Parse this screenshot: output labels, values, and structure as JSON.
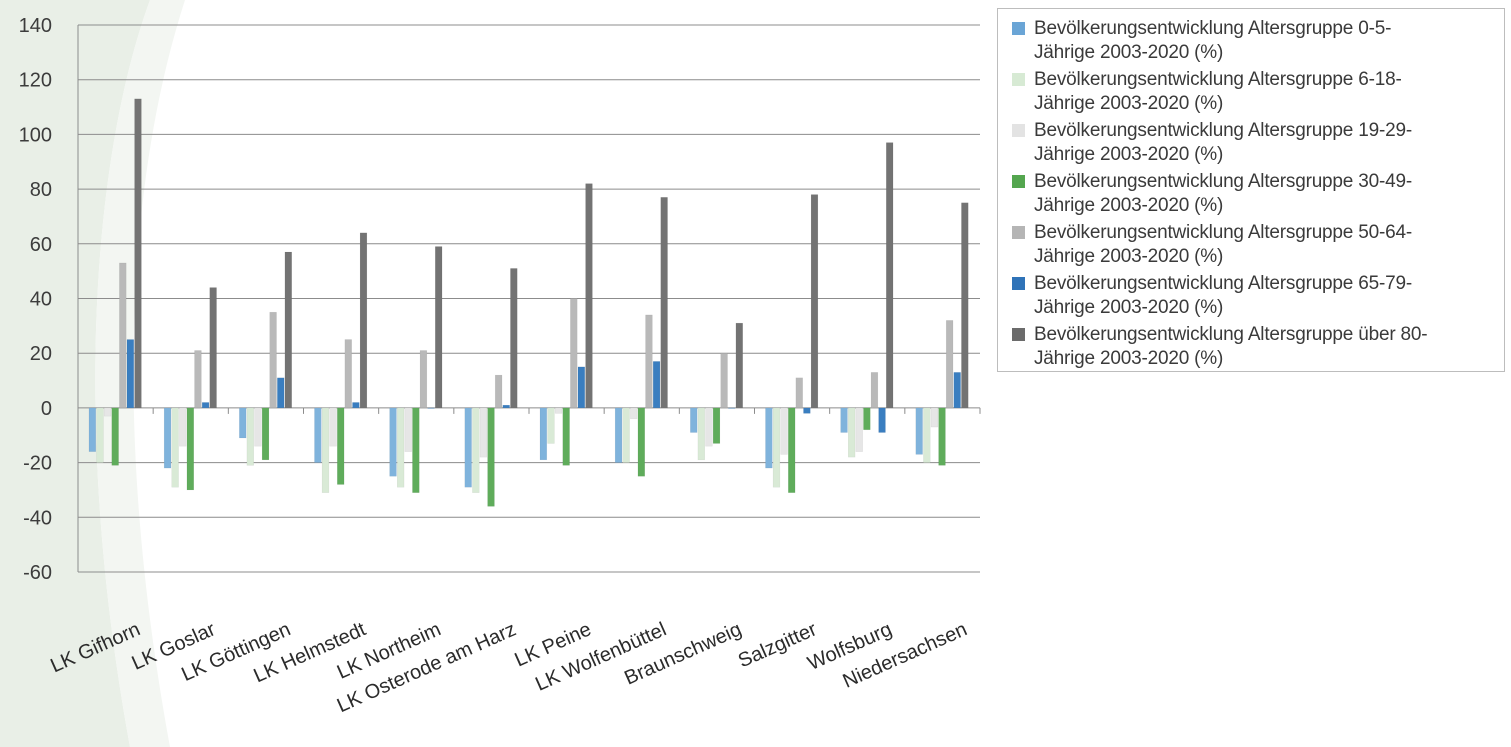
{
  "chart_data": {
    "type": "bar",
    "title": "",
    "xlabel": "",
    "ylabel": "",
    "ylim": [
      -60,
      140
    ],
    "yticks": [
      140,
      120,
      100,
      80,
      60,
      40,
      20,
      0,
      -20,
      -40,
      -60
    ],
    "grid": true,
    "legend_position": "right",
    "categories": [
      "LK Gifhorn",
      "LK Goslar",
      "LK Göttingen",
      "LK Helmstedt",
      "LK Northeim",
      "LK Osterode am Harz",
      "LK Peine",
      "LK Wolfenbüttel",
      "Braunschweig",
      "Salzgitter",
      "Wolfsburg",
      "Niedersachsen"
    ],
    "series": [
      {
        "name": "Bevölkerungsentwicklung Altersgruppe 0-5-Jährige 2003-2020 (%)",
        "color": "#7fb3dc",
        "values": [
          -16,
          -22,
          -11,
          -20,
          -25,
          -29,
          -19,
          -20,
          -9,
          -22,
          -9,
          -17
        ]
      },
      {
        "name": "Bevölkerungsentwicklung Altersgruppe 6-18-Jährige 2003-2020 (%)",
        "color": "#d9ead6",
        "values": [
          -20,
          -29,
          -21,
          -31,
          -29,
          -31,
          -13,
          -20,
          -19,
          -29,
          -18,
          -20
        ]
      },
      {
        "name": "Bevölkerungsentwicklung Altersgruppe 19-29-Jährige 2003-2020 (%)",
        "color": "#e6e6e6",
        "values": [
          -3,
          -14,
          -14,
          -14,
          -16,
          -18,
          -2,
          -4,
          -14,
          -17,
          -16,
          -7
        ]
      },
      {
        "name": "Bevölkerungsentwicklung Altersgruppe 30-49-Jährige 2003-2020 (%)",
        "color": "#5fac5b",
        "values": [
          -21,
          -30,
          -19,
          -28,
          -31,
          -36,
          -21,
          -25,
          -13,
          -31,
          -8,
          -21
        ]
      },
      {
        "name": "Bevölkerungsentwicklung Altersgruppe 50-64-Jährige 2003-2020 (%)",
        "color": "#b9b9b9",
        "values": [
          53,
          21,
          35,
          25,
          21,
          12,
          40,
          34,
          20,
          11,
          13,
          32
        ]
      },
      {
        "name": "Bevölkerungsentwicklung Altersgruppe 65-79-Jährige 2003-2020 (%)",
        "color": "#3a7ec0",
        "values": [
          25,
          2,
          11,
          2,
          0,
          1,
          15,
          17,
          0,
          -2,
          -9,
          13
        ]
      },
      {
        "name": "Bevölkerungsentwicklung Altersgruppe über 80-Jährige 2003-2020 (%)",
        "color": "#737373",
        "values": [
          113,
          44,
          57,
          64,
          59,
          51,
          82,
          77,
          31,
          78,
          97,
          75
        ]
      }
    ]
  },
  "legend": {
    "items": [
      {
        "line1": "Bevölkerungsentwicklung Altersgruppe 0-5-",
        "line2": "Jährige 2003-2020 (%)",
        "color": "#6aa5d6"
      },
      {
        "line1": "Bevölkerungsentwicklung Altersgruppe 6-18-",
        "line2": "Jährige 2003-2020 (%)",
        "color": "#d7ead4"
      },
      {
        "line1": "Bevölkerungsentwicklung Altersgruppe 19-29-",
        "line2": "Jährige 2003-2020 (%)",
        "color": "#e3e3e3"
      },
      {
        "line1": "Bevölkerungsentwicklung Altersgruppe 30-49-",
        "line2": "Jährige 2003-2020 (%)",
        "color": "#54a64f"
      },
      {
        "line1": "Bevölkerungsentwicklung Altersgruppe 50-64-",
        "line2": "Jährige 2003-2020 (%)",
        "color": "#b5b5b5"
      },
      {
        "line1": "Bevölkerungsentwicklung Altersgruppe 65-79-",
        "line2": "Jährige 2003-2020 (%)",
        "color": "#2f73b8"
      },
      {
        "line1": "Bevölkerungsentwicklung Altersgruppe über 80-",
        "line2": "Jährige 2003-2020 (%)",
        "color": "#6b6b6b"
      }
    ]
  },
  "colors": {
    "background": "#ffffff",
    "decor_green": "#e8efe6",
    "gridline": "#8c8c8c"
  }
}
